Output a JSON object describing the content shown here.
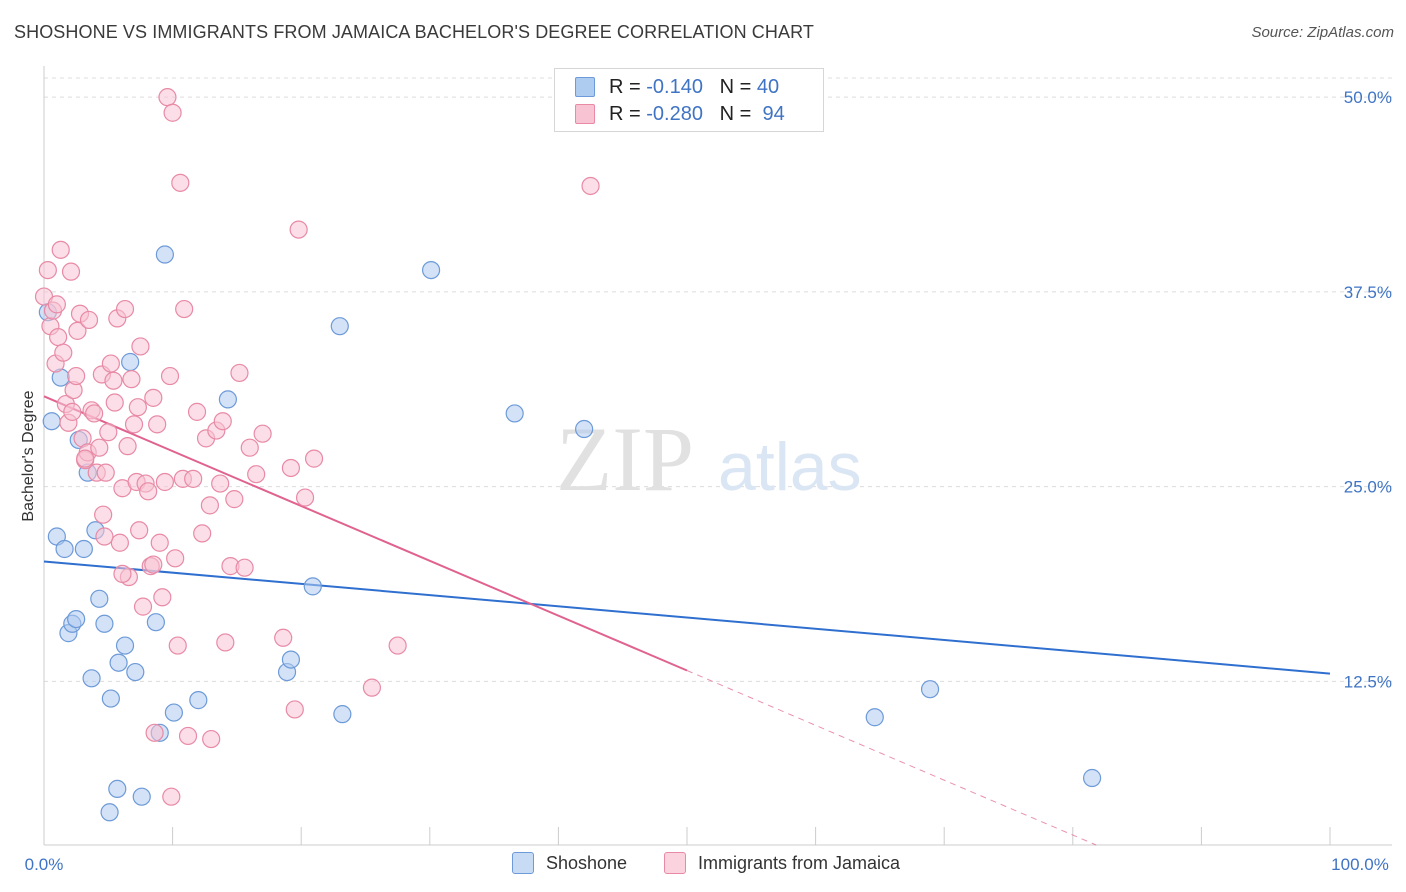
{
  "header": {
    "title": "SHOSHONE VS IMMIGRANTS FROM JAMAICA BACHELOR'S DEGREE CORRELATION CHART",
    "source": "Source: ZipAtlas.com"
  },
  "watermark": {
    "part1": "ZIP",
    "part2": "atlas"
  },
  "legend": {
    "rows": [
      {
        "r_label": "R =",
        "r_value": "-0.140",
        "n_label": "N =",
        "n_value": "40",
        "color": "#aecbf0",
        "border": "#6d9ad8"
      },
      {
        "r_label": "R =",
        "r_value": "-0.280",
        "n_label": "N =",
        "n_value": "94",
        "color": "#f8c3d3",
        "border": "#e88aa6"
      }
    ]
  },
  "bottom_legend": {
    "series1": "Shoshone",
    "series2": "Immigrants from Jamaica"
  },
  "chart_data": {
    "type": "scatter",
    "title": "SHOSHONE VS IMMIGRANTS FROM JAMAICA BACHELOR'S DEGREE CORRELATION CHART",
    "xlabel": "",
    "ylabel": "Bachelor's Degree",
    "xlim": [
      0,
      100
    ],
    "ylim": [
      2,
      52
    ],
    "x_ticks": [
      "0.0%",
      "100.0%"
    ],
    "y_ticks": [
      {
        "value": 12.5,
        "label": "12.5%"
      },
      {
        "value": 25.0,
        "label": "25.0%"
      },
      {
        "value": 37.5,
        "label": "37.5%"
      },
      {
        "value": 50.0,
        "label": "50.0%"
      }
    ],
    "grid": true,
    "legend_position": "top-center",
    "series": [
      {
        "name": "Shoshone",
        "color": "#aecbf0",
        "edge": "#6d9ad8",
        "trend": {
          "x0": 0,
          "y0": 20.2,
          "x1": 100,
          "y1": 13.0,
          "color": "#2f6fcf"
        },
        "points": [
          [
            0.3,
            36.2
          ],
          [
            0.6,
            29.2
          ],
          [
            1.0,
            21.8
          ],
          [
            1.3,
            32.0
          ],
          [
            1.6,
            21.0
          ],
          [
            1.9,
            15.6
          ],
          [
            2.2,
            16.2
          ],
          [
            2.5,
            16.5
          ],
          [
            2.7,
            28.0
          ],
          [
            3.1,
            21.0
          ],
          [
            3.4,
            25.9
          ],
          [
            3.7,
            12.7
          ],
          [
            4.0,
            22.2
          ],
          [
            4.3,
            17.8
          ],
          [
            4.7,
            16.2
          ],
          [
            5.2,
            11.4
          ],
          [
            5.8,
            13.7
          ],
          [
            6.3,
            14.8
          ],
          [
            6.7,
            33.0
          ],
          [
            7.1,
            13.1
          ],
          [
            7.6,
            5.1
          ],
          [
            8.7,
            16.3
          ],
          [
            9.0,
            9.2
          ],
          [
            9.4,
            39.9
          ],
          [
            10.1,
            10.5
          ],
          [
            12.0,
            11.3
          ],
          [
            14.3,
            30.6
          ],
          [
            18.9,
            13.1
          ],
          [
            19.2,
            13.9
          ],
          [
            20.9,
            18.6
          ],
          [
            23.0,
            35.3
          ],
          [
            23.2,
            10.4
          ],
          [
            30.1,
            38.9
          ],
          [
            36.6,
            29.7
          ],
          [
            42.0,
            28.7
          ],
          [
            64.6,
            10.2
          ],
          [
            68.9,
            12.0
          ],
          [
            81.5,
            6.3
          ],
          [
            5.1,
            4.1
          ],
          [
            5.7,
            5.6
          ]
        ]
      },
      {
        "name": "Immigrants from Jamaica",
        "color": "#f8c3d3",
        "edge": "#e88aa6",
        "trend": {
          "x0": 0,
          "y0": 30.8,
          "x1": 50,
          "y1": 13.2,
          "dash_x1": 100,
          "dash_y1": -4.4,
          "color": "#e0628f"
        },
        "points": [
          [
            0.0,
            37.2
          ],
          [
            0.3,
            38.9
          ],
          [
            0.5,
            35.3
          ],
          [
            0.7,
            36.3
          ],
          [
            0.9,
            32.9
          ],
          [
            1.1,
            34.6
          ],
          [
            1.3,
            40.2
          ],
          [
            1.5,
            33.6
          ],
          [
            1.7,
            30.3
          ],
          [
            1.9,
            29.1
          ],
          [
            2.1,
            38.8
          ],
          [
            2.3,
            31.2
          ],
          [
            2.5,
            32.1
          ],
          [
            2.6,
            35.0
          ],
          [
            2.8,
            36.1
          ],
          [
            3.0,
            28.1
          ],
          [
            3.2,
            26.7
          ],
          [
            3.4,
            27.2
          ],
          [
            3.5,
            35.7
          ],
          [
            3.7,
            29.9
          ],
          [
            3.9,
            29.7
          ],
          [
            4.1,
            25.9
          ],
          [
            4.3,
            27.5
          ],
          [
            4.5,
            32.2
          ],
          [
            4.6,
            23.2
          ],
          [
            4.8,
            25.9
          ],
          [
            5.0,
            28.5
          ],
          [
            5.2,
            32.9
          ],
          [
            5.4,
            31.8
          ],
          [
            5.5,
            30.4
          ],
          [
            5.7,
            35.8
          ],
          [
            5.9,
            21.4
          ],
          [
            6.1,
            24.9
          ],
          [
            6.3,
            36.4
          ],
          [
            6.5,
            27.6
          ],
          [
            6.6,
            19.2
          ],
          [
            6.8,
            31.9
          ],
          [
            7.0,
            29.0
          ],
          [
            7.2,
            25.3
          ],
          [
            7.4,
            22.2
          ],
          [
            7.5,
            34.0
          ],
          [
            7.7,
            17.3
          ],
          [
            7.9,
            25.2
          ],
          [
            8.1,
            24.7
          ],
          [
            8.3,
            19.9
          ],
          [
            8.5,
            30.7
          ],
          [
            8.6,
            9.2
          ],
          [
            8.8,
            29.0
          ],
          [
            9.0,
            21.4
          ],
          [
            9.2,
            17.9
          ],
          [
            9.4,
            25.3
          ],
          [
            9.6,
            50.0
          ],
          [
            9.8,
            32.1
          ],
          [
            10.0,
            49.0
          ],
          [
            10.2,
            20.4
          ],
          [
            10.4,
            14.8
          ],
          [
            10.6,
            44.5
          ],
          [
            10.8,
            25.5
          ],
          [
            10.9,
            36.4
          ],
          [
            11.2,
            9.0
          ],
          [
            11.6,
            25.5
          ],
          [
            11.9,
            29.8
          ],
          [
            12.3,
            22.0
          ],
          [
            12.6,
            28.1
          ],
          [
            13.0,
            8.8
          ],
          [
            13.4,
            28.6
          ],
          [
            13.7,
            25.2
          ],
          [
            14.1,
            15.0
          ],
          [
            14.5,
            19.9
          ],
          [
            14.8,
            24.2
          ],
          [
            15.2,
            32.3
          ],
          [
            15.6,
            19.8
          ],
          [
            16.0,
            27.5
          ],
          [
            16.5,
            25.8
          ],
          [
            17.0,
            28.4
          ],
          [
            18.6,
            15.3
          ],
          [
            19.2,
            26.2
          ],
          [
            19.5,
            10.7
          ],
          [
            19.8,
            41.5
          ],
          [
            20.3,
            24.3
          ],
          [
            21.0,
            26.8
          ],
          [
            25.5,
            12.1
          ],
          [
            27.5,
            14.8
          ],
          [
            42.5,
            44.3
          ],
          [
            6.1,
            19.4
          ],
          [
            4.7,
            21.8
          ],
          [
            3.2,
            26.8
          ],
          [
            2.2,
            29.8
          ],
          [
            1.0,
            36.7
          ],
          [
            9.9,
            5.1
          ],
          [
            8.5,
            20.0
          ],
          [
            13.9,
            29.2
          ],
          [
            7.3,
            30.1
          ],
          [
            12.9,
            23.8
          ]
        ]
      }
    ]
  }
}
